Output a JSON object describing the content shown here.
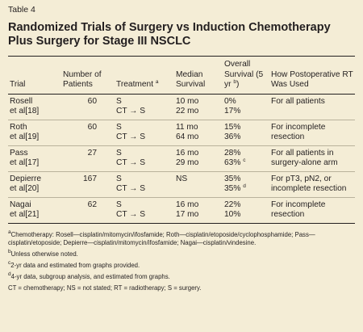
{
  "label": "Table 4",
  "title": "Randomized Trials of Surgery vs Induction Chemotherapy Plus Surgery for Stage III NSCLC",
  "table": {
    "header": [
      "Trial",
      "Number of Patients",
      {
        "text": "Treatment ",
        "sup": "a"
      },
      "Median Survival",
      {
        "text": "Overall Survival (5 yr ",
        "sup": "b",
        "after": ")"
      },
      "How Postoperative RT Was Used"
    ],
    "rows": [
      [
        [
          "Rosell",
          "et al[18]"
        ],
        "60",
        [
          "S",
          "CT → S"
        ],
        [
          "10 mo",
          "22 mo"
        ],
        [
          "0%",
          "17%"
        ],
        "For all patients"
      ],
      [
        [
          "Roth",
          "et al[19]"
        ],
        "60",
        [
          "S",
          "CT → S"
        ],
        [
          "11 mo",
          "64 mo"
        ],
        [
          "15%",
          "36%"
        ],
        "For incomplete resection"
      ],
      [
        [
          "Pass",
          "et al[17]"
        ],
        "27",
        [
          "S",
          "CT → S"
        ],
        [
          "16 mo",
          "29 mo"
        ],
        [
          "28%",
          {
            "text": "63% ",
            "sup": "c"
          }
        ],
        "For all patients in surgery-alone arm"
      ],
      [
        [
          "Depierre",
          "et al[20]"
        ],
        "167",
        [
          "S",
          "CT → S"
        ],
        "NS",
        [
          "35%",
          {
            "text": "35% ",
            "sup": "d"
          }
        ],
        "For pT3, pN2, or incomplete resection"
      ],
      [
        [
          "Nagai",
          "et al[21]"
        ],
        "62",
        [
          "S",
          "CT → S"
        ],
        [
          "16 mo",
          "17 mo"
        ],
        [
          "22%",
          "10%"
        ],
        "For incomplete resection"
      ]
    ]
  },
  "footnotes": [
    {
      "mark": "a",
      "text": "Chemotherapy: Rosell—cisplatin/mitomycin/ifosfamide; Roth—cisplatin/etoposide/cyclophosphamide; Pass—cisplatin/etoposide; Depierre—cisplatin/mitomycin/ifosfamide; Nagai—cisplatin/vindesine."
    },
    {
      "mark": "b",
      "text": "Unless otherwise noted."
    },
    {
      "mark": "c",
      "text": "2-yr data and estimated from graphs provided."
    },
    {
      "mark": "d",
      "text": "4-yr data, subgroup analysis, and estimated from graphs."
    },
    {
      "text": "CT = chemotherapy; NS = not stated; RT = radiotherapy; S = surgery."
    }
  ]
}
